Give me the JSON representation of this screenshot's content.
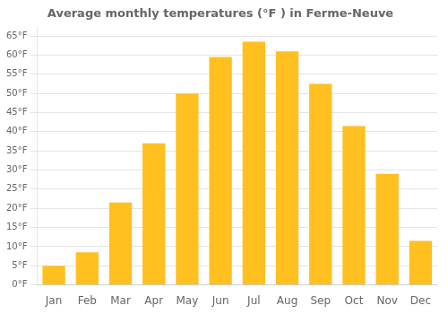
{
  "chart_data": {
    "type": "bar",
    "title": "Average monthly temperatures (°F ) in Ferme-Neuve",
    "categories": [
      "Jan",
      "Feb",
      "Mar",
      "Apr",
      "May",
      "Jun",
      "Jul",
      "Aug",
      "Sep",
      "Oct",
      "Nov",
      "Dec"
    ],
    "values": [
      5,
      8.5,
      21.5,
      37,
      50,
      59.5,
      63.5,
      61,
      52.5,
      41.5,
      29,
      11.5
    ],
    "color": "#FFC020",
    "ylim": [
      0,
      67
    ],
    "yticks": [
      {
        "value": 0,
        "label": "0°F"
      },
      {
        "value": 5,
        "label": "5°F"
      },
      {
        "value": 10,
        "label": "10°F"
      },
      {
        "value": 15,
        "label": "15°F"
      },
      {
        "value": 20,
        "label": "20°F"
      },
      {
        "value": 25,
        "label": "25°F"
      },
      {
        "value": 30,
        "label": "30°F"
      },
      {
        "value": 35,
        "label": "35°F"
      },
      {
        "value": 40,
        "label": "40°F"
      },
      {
        "value": 45,
        "label": "45°F"
      },
      {
        "value": 50,
        "label": "50°F"
      },
      {
        "value": 55,
        "label": "55°F"
      },
      {
        "value": 60,
        "label": "60°F"
      },
      {
        "value": 65,
        "label": "65°F"
      }
    ],
    "grid": true
  }
}
